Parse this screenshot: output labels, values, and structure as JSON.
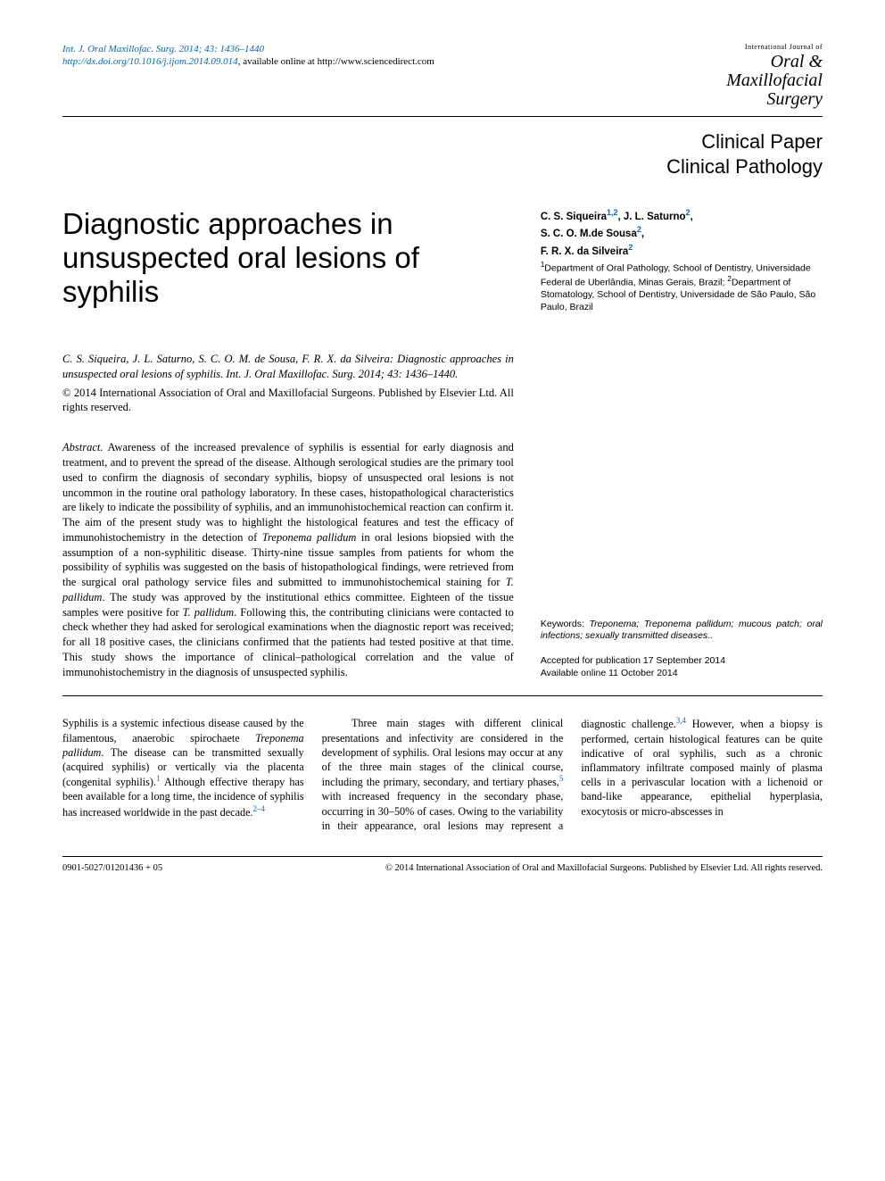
{
  "header": {
    "ref_line1": "Int. J. Oral Maxillofac. Surg. 2014; 43: 1436–1440",
    "ref_doi_prefix": "http://dx.doi.org/10.1016/j.ijom.2014.09.014",
    "ref_line2_tail": ", available online at http://www.sciencedirect.com",
    "logo_intl": "International Journal of",
    "logo_line1": "Oral &",
    "logo_line2": "Maxillofacial",
    "logo_line3": "Surgery"
  },
  "section": {
    "label1": "Clinical Paper",
    "label2": "Clinical Pathology"
  },
  "title": "Diagnostic approaches in unsuspected oral lesions of syphilis",
  "authors": {
    "a1": "C. S. Siqueira",
    "a1_sup": "1,2",
    "a2": "J. L. Saturno",
    "a2_sup": "2",
    "a3": "S. C. O. M.de Sousa",
    "a3_sup": "2",
    "a4": "F. R. X. da Silveira",
    "a4_sup": "2"
  },
  "affiliations": {
    "aff1_sup": "1",
    "aff1": "Department of Oral Pathology, School of Dentistry, Universidade Federal de Uberlândia, Minas Gerais, Brazil;",
    "aff2_sup": "2",
    "aff2": "Department of Stomatology, School of Dentistry, Universidade de São Paulo, São Paulo, Brazil"
  },
  "citation": "C. S. Siqueira, J. L. Saturno, S. C. O. M. de Sousa, F. R. X. da Silveira: Diagnostic approaches in unsuspected oral lesions of syphilis. Int. J. Oral Maxillofac. Surg. 2014; 43: 1436–1440.",
  "copyright": "© 2014 International Association of Oral and Maxillofacial Surgeons. Published by Elsevier Ltd. All rights reserved.",
  "abstract": {
    "lead": "Abstract.",
    "p1a": " Awareness of the increased prevalence of syphilis is essential for early diagnosis and treatment, and to prevent the spread of the disease. Although serological studies are the primary tool used to confirm the diagnosis of secondary syphilis, biopsy of unsuspected oral lesions is not uncommon in the routine oral pathology laboratory. In these cases, histopathological characteristics are likely to indicate the possibility of syphilis, and an immunohistochemical reaction can confirm it. The aim of the present study was to highlight the histological features and test the efficacy of immunohistochemistry in the detection of ",
    "sp1": "Treponema pallidum",
    "p1b": " in oral lesions biopsied with the assumption of a non-syphilitic disease. Thirty-nine tissue samples from patients for whom the possibility of syphilis was suggested on the basis of histopathological findings, were retrieved from the surgical oral pathology service files and submitted to immunohistochemical staining for ",
    "sp2": "T. pallidum",
    "p1c": ". The study was approved by the institutional ethics committee. Eighteen of the tissue samples were positive for ",
    "sp3": "T. pallidum",
    "p1d": ". Following this, the contributing clinicians were contacted to check whether they had asked for serological examinations when the diagnostic report was received; for all 18 positive cases, the clinicians confirmed that the patients had tested positive at that time. This study shows the importance of clinical–pathological correlation and the value of immunohistochemistry in the diagnosis of unsuspected syphilis."
  },
  "keywords": {
    "label": "Keywords:",
    "text": " Treponema; Treponema pallidum; mucous patch; oral infections; sexually transmitted diseases.."
  },
  "dates": {
    "accepted": "Accepted for publication 17 September 2014",
    "online": "Available online 11 October 2014"
  },
  "body": {
    "p1a": "Syphilis is a systemic infectious disease caused by the filamentous, anaerobic spirochaete ",
    "sp1": "Treponema pallidum",
    "p1b": ". The disease can be transmitted sexually (acquired syphilis) or vertically via the placenta (congenital syphilis).",
    "r1": "1",
    "p1c": " Although effective therapy has been available for a long time, the incidence of syphilis has increased worldwide in the past decade.",
    "r2": "2–4",
    "p2a": "Three main stages with different clinical presentations and infectivity are considered in the development of syphilis. Oral lesions may occur at any of the three main stages of the clinical course, including the primary, secondary, and tertiary phases,",
    "r3": "5",
    "p2b": " with increased frequency in the secondary phase, occurring in 30–50% of cases. Owing to the variability in their appearance, oral lesions may represent a diagnostic challenge.",
    "r4": "3,4",
    "p2c": " However, when a biopsy is performed, certain histological features can be quite indicative of oral syphilis, such as a chronic inflammatory infiltrate composed mainly of plasma cells in a perivascular location with a lichenoid or band-like appearance, epithelial hyperplasia, exocytosis or micro-abscesses in"
  },
  "footer": {
    "left": "0901-5027/01201436 + 05",
    "right": "© 2014 International Association of Oral and Maxillofacial Surgeons. Published by Elsevier Ltd. All rights reserved."
  },
  "colors": {
    "link": "#0066cc",
    "text": "#000000",
    "background": "#ffffff"
  }
}
